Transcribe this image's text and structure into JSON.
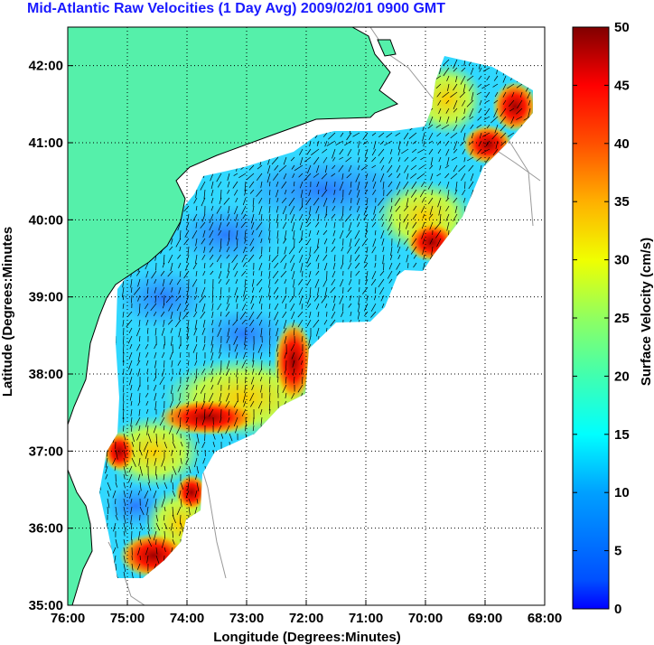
{
  "title": "Mid-Atlantic Raw Velocities (1 Day Avg) 2009/02/01 0900 GMT",
  "x_axis": {
    "label": "Longitude (Degrees:Minutes)",
    "ticks": [
      {
        "value": -76,
        "label": "76:00"
      },
      {
        "value": -75,
        "label": "75:00"
      },
      {
        "value": -74,
        "label": "74:00"
      },
      {
        "value": -73,
        "label": "73:00"
      },
      {
        "value": -72,
        "label": "72:00"
      },
      {
        "value": -71,
        "label": "71:00"
      },
      {
        "value": -70,
        "label": "70:00"
      },
      {
        "value": -69,
        "label": "69:00"
      },
      {
        "value": -68,
        "label": "68:00"
      }
    ],
    "range": [
      -76,
      -68
    ]
  },
  "y_axis": {
    "label": "Latitude (Degrees:Minutes",
    "ticks": [
      {
        "value": 35,
        "label": "35:00"
      },
      {
        "value": 36,
        "label": "36:00"
      },
      {
        "value": 37,
        "label": "37:00"
      },
      {
        "value": 38,
        "label": "38:00"
      },
      {
        "value": 39,
        "label": "39:00"
      },
      {
        "value": 40,
        "label": "40:00"
      },
      {
        "value": 41,
        "label": "41:00"
      },
      {
        "value": 42,
        "label": "42:00"
      }
    ],
    "range": [
      35,
      42.5
    ]
  },
  "colorbar": {
    "label": "Surface Velocity (cm/s)",
    "ticks": [
      {
        "value": 0,
        "label": "0"
      },
      {
        "value": 5,
        "label": "5"
      },
      {
        "value": 10,
        "label": "10"
      },
      {
        "value": 15,
        "label": "15"
      },
      {
        "value": 20,
        "label": "20"
      },
      {
        "value": 25,
        "label": "25"
      },
      {
        "value": 30,
        "label": "30"
      },
      {
        "value": 35,
        "label": "35"
      },
      {
        "value": 40,
        "label": "40"
      },
      {
        "value": 45,
        "label": "45"
      },
      {
        "value": 50,
        "label": "50"
      }
    ],
    "range": [
      0,
      50
    ],
    "colormap": "jet"
  },
  "colors": {
    "land": "#55f0aa",
    "coast": "#000000",
    "bathymetry": "#999999",
    "grid": "#000000",
    "title": "#1a1aff"
  },
  "grid": true
}
